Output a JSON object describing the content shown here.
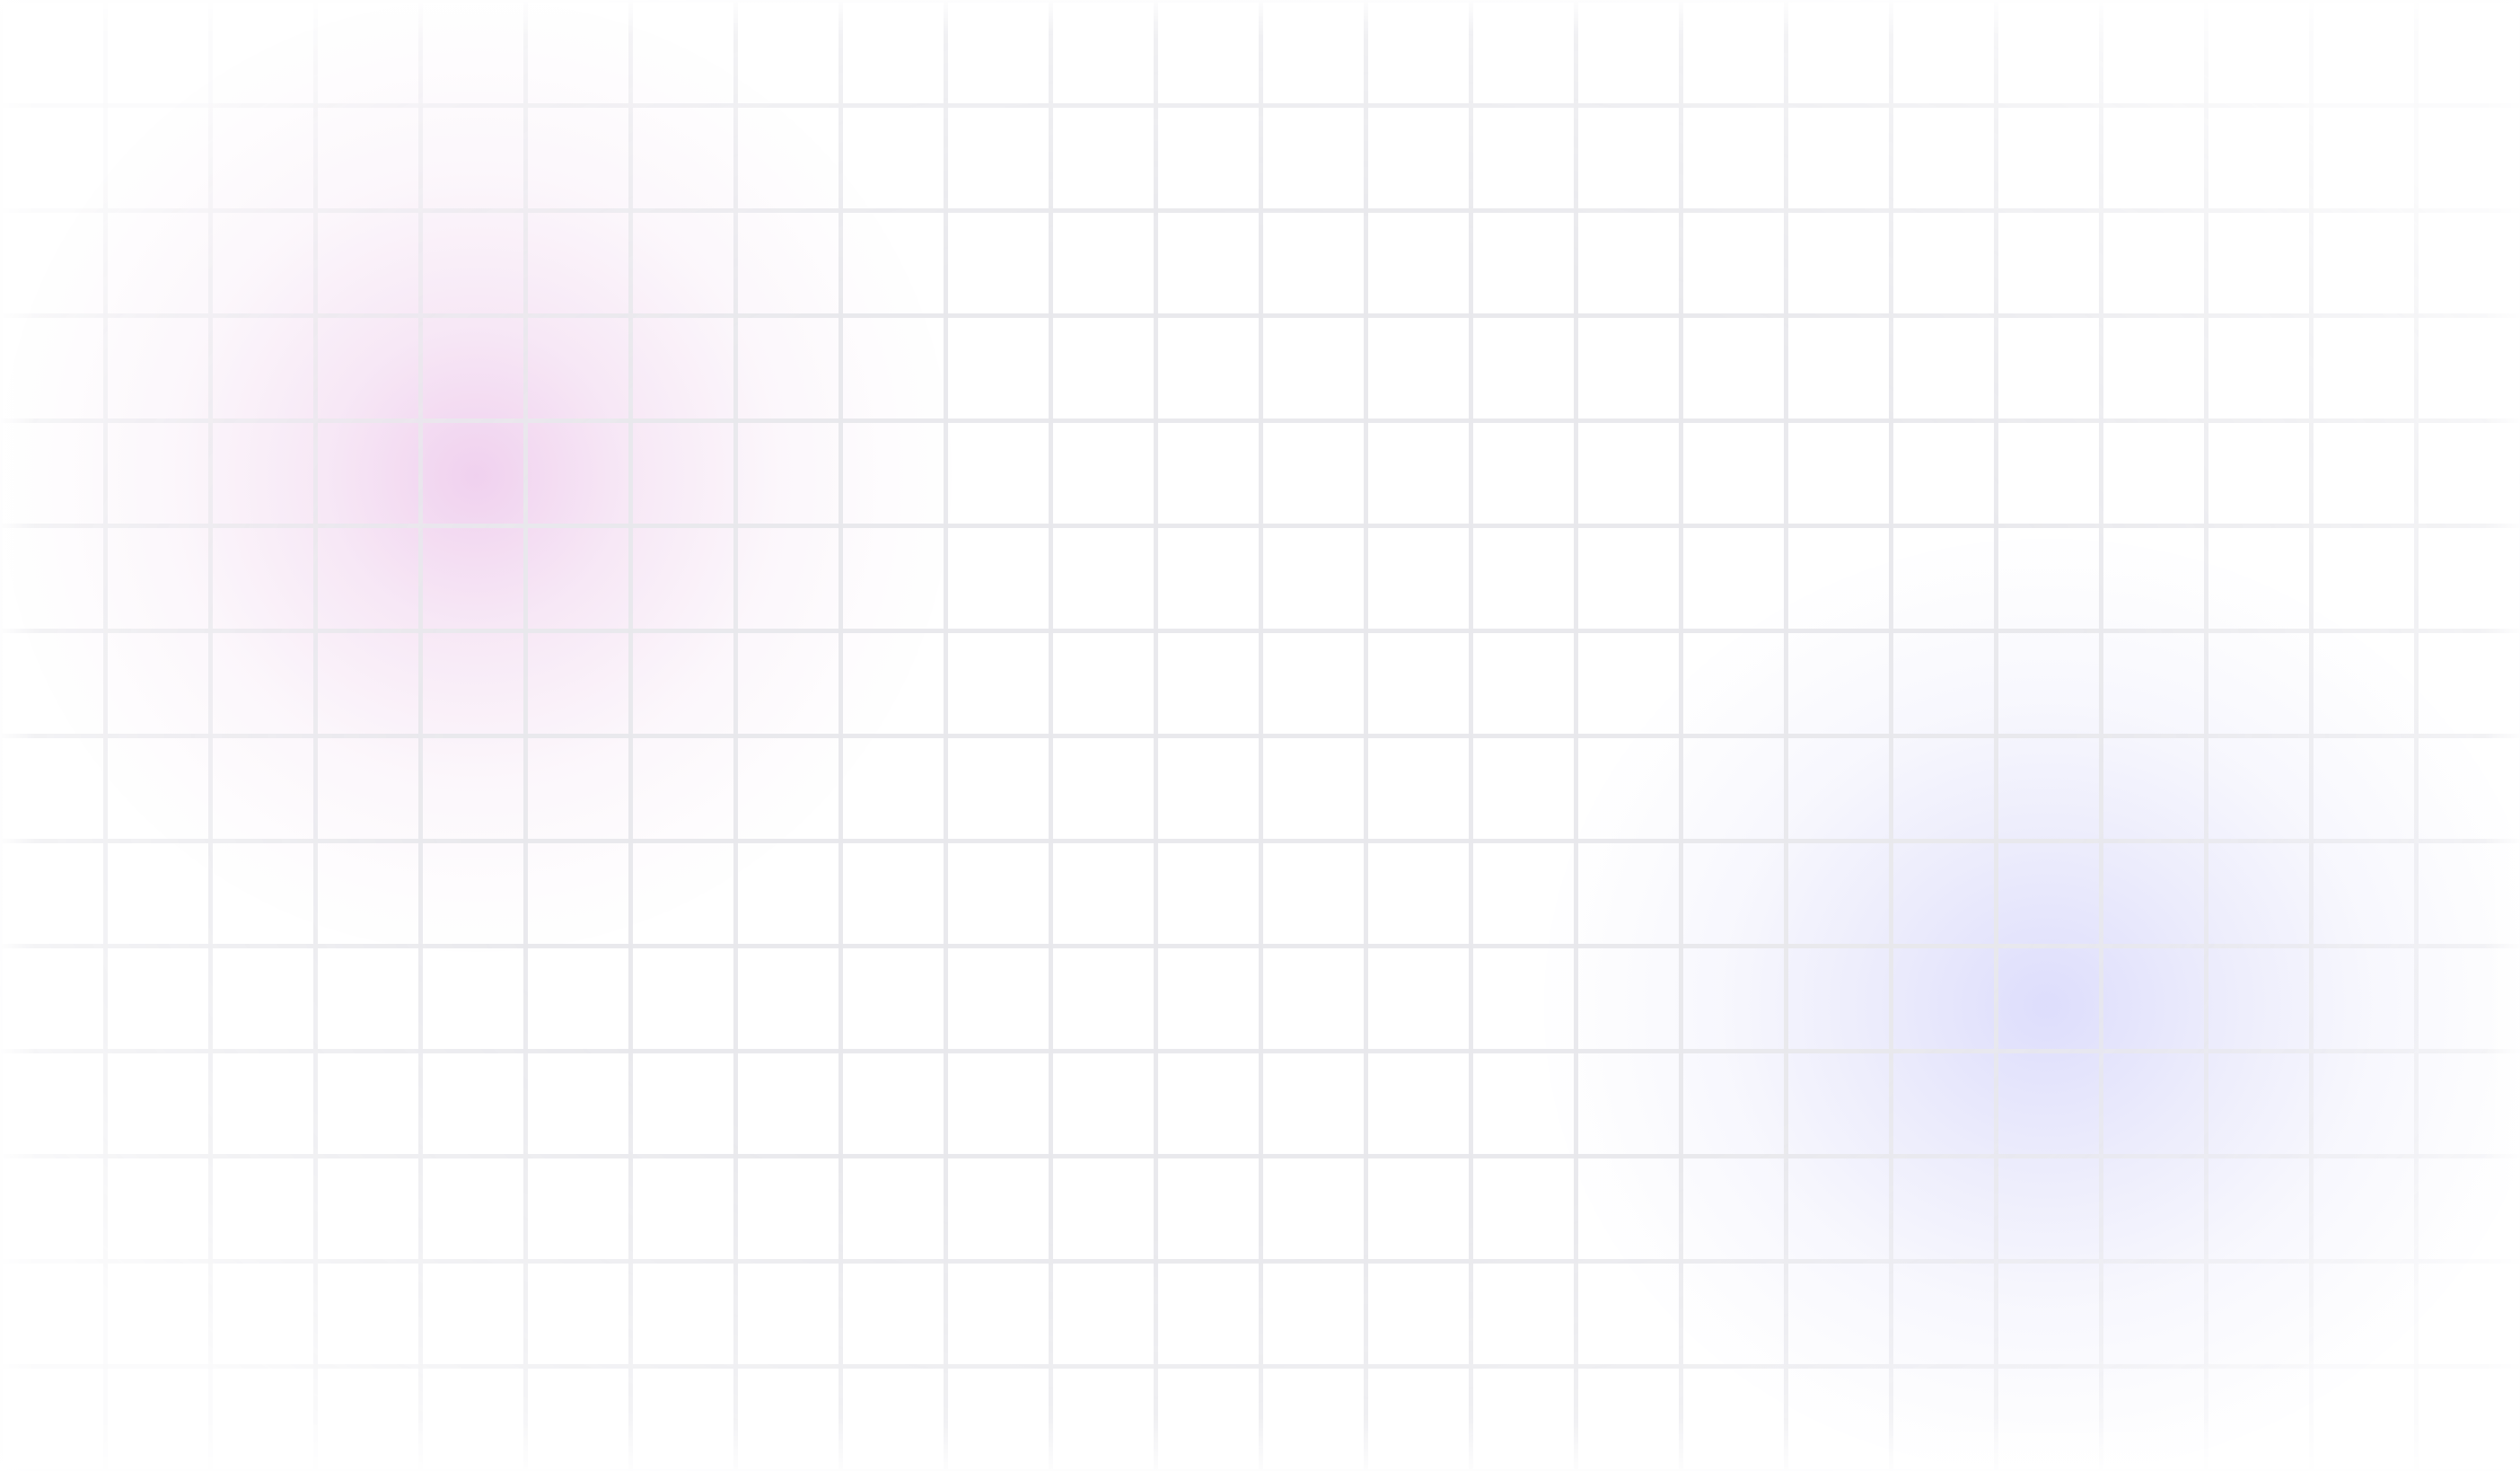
{
  "background": {
    "base_color": "#ffffff",
    "grid_line_color": "#e8e8ec",
    "accent_glows": [
      {
        "name": "pink-glow",
        "color": "#ecc4ea"
      },
      {
        "name": "lavender-glow",
        "color": "#d6d6fc"
      }
    ]
  }
}
